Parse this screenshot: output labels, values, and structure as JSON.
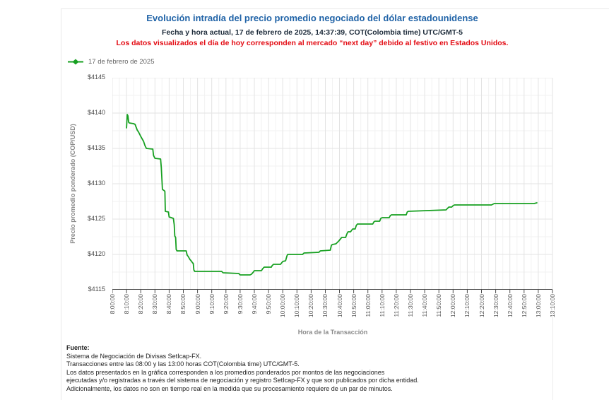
{
  "header": {
    "title": "Evolución intradía del precio promedio negociado del dólar estadounidense",
    "subtitle": "Fecha y hora actual, 17 de febrero de 2025, 14:37:39, COT(Colombia time) UTC/GMT-5",
    "warning": "Los datos visualizados el día de hoy corresponden al mercado “next day” debido al festivo en Estados Unidos."
  },
  "legend": {
    "items": [
      {
        "label": "17 de febrero de 2025",
        "marker_color": "#17a021",
        "marker_shape": "line-with-diamond"
      }
    ]
  },
  "chart_data": {
    "type": "line",
    "xlabel": "Hora de la Transacción",
    "ylabel": "Precio promedio ponderado (COP/USD)",
    "x_unit": "minutes since 08:00, ticks every 10 minutes",
    "xlim_minutes": [
      0,
      310
    ],
    "ylim": [
      4115,
      4145
    ],
    "x_tick_labels": [
      "8:00:00",
      "8:10:00",
      "8:20:00",
      "8:30:00",
      "8:40:00",
      "8:50:00",
      "9:00:00",
      "9:10:00",
      "9:20:00",
      "9:30:00",
      "9:40:00",
      "9:50:00",
      "10:00:00",
      "10:10:00",
      "10:20:00",
      "10:30:00",
      "10:40:00",
      "10:50:00",
      "11:00:00",
      "11:10:00",
      "11:20:00",
      "11:30:00",
      "11:40:00",
      "11:50:00",
      "12:00:00",
      "12:10:00",
      "12:20:00",
      "12:30:00",
      "12:40:00",
      "12:50:00",
      "13:00:00",
      "13:10:00"
    ],
    "y_tick_labels": [
      "$4115",
      "$4120",
      "$4125",
      "$4130",
      "$4135",
      "$4140",
      "$4145"
    ],
    "y_tick_values": [
      4115,
      4120,
      4125,
      4130,
      4135,
      4140,
      4145
    ],
    "grid": {
      "major_color": "#e3e3e3",
      "minor_color": "#f2f2f2",
      "x_minor_every_min": 5,
      "y_minor_every": 2.5,
      "axis_color": "#4d4d4d"
    },
    "legend_position": "top-left",
    "series": [
      {
        "name": "17 de febrero de 2025",
        "color": "#17a021",
        "points_min_value": [
          [
            10,
            4137.9
          ],
          [
            10.5,
            4139.8
          ],
          [
            11,
            4139.6
          ],
          [
            11.5,
            4138.7
          ],
          [
            12,
            4138.6
          ],
          [
            15,
            4138.5
          ],
          [
            16,
            4138.4
          ],
          [
            17.5,
            4137.6
          ],
          [
            18.5,
            4137.3
          ],
          [
            20,
            4136.7
          ],
          [
            22,
            4136.0
          ],
          [
            23,
            4135.4
          ],
          [
            24,
            4135.0
          ],
          [
            28.5,
            4134.9
          ],
          [
            29,
            4134.0
          ],
          [
            30,
            4133.6
          ],
          [
            34,
            4133.5
          ],
          [
            34.5,
            4132.3
          ],
          [
            35,
            4130.4
          ],
          [
            35.3,
            4129.2
          ],
          [
            36.7,
            4129.0
          ],
          [
            37,
            4128.9
          ],
          [
            37.3,
            4126.1
          ],
          [
            39.5,
            4126.0
          ],
          [
            40,
            4125.3
          ],
          [
            43,
            4125.1
          ],
          [
            43.6,
            4124.2
          ],
          [
            44,
            4122.6
          ],
          [
            44.6,
            4122.4
          ],
          [
            45,
            4120.7
          ],
          [
            45.6,
            4120.5
          ],
          [
            52,
            4120.5
          ],
          [
            52.7,
            4119.9
          ],
          [
            53.5,
            4119.7
          ],
          [
            54.6,
            4119.3
          ],
          [
            55.5,
            4119.1
          ],
          [
            56.2,
            4118.9
          ],
          [
            57,
            4118.7
          ],
          [
            57.4,
            4117.8
          ],
          [
            58,
            4117.6
          ],
          [
            77,
            4117.6
          ],
          [
            78,
            4117.4
          ],
          [
            89,
            4117.3
          ],
          [
            90,
            4117.1
          ],
          [
            97,
            4117.1
          ],
          [
            98,
            4117.2
          ],
          [
            99.3,
            4117.5
          ],
          [
            100,
            4117.7
          ],
          [
            105,
            4117.7
          ],
          [
            106,
            4118.0
          ],
          [
            107,
            4118.2
          ],
          [
            112,
            4118.2
          ],
          [
            112.5,
            4118.4
          ],
          [
            113.5,
            4118.6
          ],
          [
            118.5,
            4118.6
          ],
          [
            119.2,
            4118.8
          ],
          [
            120,
            4119.0
          ],
          [
            122,
            4119.1
          ],
          [
            123,
            4119.8
          ],
          [
            123.5,
            4120.0
          ],
          [
            134,
            4120.0
          ],
          [
            135,
            4120.2
          ],
          [
            145.5,
            4120.3
          ],
          [
            146.5,
            4120.5
          ],
          [
            153.5,
            4120.6
          ],
          [
            154.3,
            4121.3
          ],
          [
            155,
            4121.4
          ],
          [
            157.5,
            4121.5
          ],
          [
            158.5,
            4121.7
          ],
          [
            159.5,
            4121.9
          ],
          [
            160.7,
            4122.2
          ],
          [
            161.5,
            4122.4
          ],
          [
            164.3,
            4122.4
          ],
          [
            165.2,
            4122.9
          ],
          [
            166,
            4123.2
          ],
          [
            167.8,
            4123.2
          ],
          [
            168.5,
            4123.4
          ],
          [
            169.3,
            4123.6
          ],
          [
            171,
            4123.6
          ],
          [
            171.8,
            4124.1
          ],
          [
            172.6,
            4124.3
          ],
          [
            183.4,
            4124.3
          ],
          [
            184.2,
            4124.6
          ],
          [
            185,
            4124.7
          ],
          [
            188.3,
            4124.7
          ],
          [
            189.1,
            4125.1
          ],
          [
            190,
            4125.2
          ],
          [
            195,
            4125.2
          ],
          [
            195.8,
            4125.5
          ],
          [
            196.6,
            4125.6
          ],
          [
            207,
            4125.6
          ],
          [
            207.7,
            4126.0
          ],
          [
            208.5,
            4126.1
          ],
          [
            235,
            4126.3
          ],
          [
            236,
            4126.5
          ],
          [
            237,
            4126.7
          ],
          [
            239,
            4126.7
          ],
          [
            240,
            4126.9
          ],
          [
            241,
            4127.0
          ],
          [
            267,
            4127.0
          ],
          [
            268,
            4127.1
          ],
          [
            269,
            4127.2
          ],
          [
            297,
            4127.2
          ],
          [
            299,
            4127.3
          ]
        ]
      }
    ]
  },
  "footer": {
    "source_label": "Fuente:",
    "lines": [
      "Sistema de Negociación de Divisas SetIcap-FX.",
      "Transacciones entre las 08:00 y las 13:00 horas COT(Colombia time) UTC/GMT-5.",
      "Los datos presentados en la gráfica corresponden a los promedios ponderados por montos de las negociaciones",
      "ejecutadas y/o registradas a través del sistema de negociación y registro SetIcap-FX y que son publicados por dicha entidad.",
      "Adicionalmente, los datos no son en tiempo real en la medida que su procesamiento requiere de un par de minutos."
    ]
  },
  "colors": {
    "title_blue": "#2063a7",
    "subtitle_dark": "#1d2b3a",
    "warning_red": "#e30b13",
    "series_green": "#17a021",
    "axis_text": "#555555",
    "axis_title": "#8a8a8a",
    "panel_border": "#e8e8e8"
  }
}
